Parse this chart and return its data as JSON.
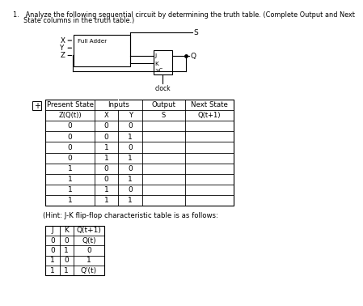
{
  "bg_color": "#ffffff",
  "text_color": "#000000",
  "title_line1": "1.   Analyze the following sequential circuit by determining the truth table. (Complete Output and Next",
  "title_line2": "     State columns in the truth table.)",
  "circuit_label": "Full Adder",
  "clock_label": "clock",
  "output_s_label": "S",
  "output_q_label": "Q",
  "hint_text": "(Hint: J-K flip-flop characteristic table is as follows:",
  "main_table": {
    "col_headers": [
      "Present State",
      "Inputs",
      "Output",
      "Next State"
    ],
    "sub_headers": [
      "Z(Q(t))",
      "X",
      "Y",
      "S",
      "Q(t+1)"
    ],
    "rows": [
      [
        "0",
        "0",
        "0",
        "",
        ""
      ],
      [
        "0",
        "0",
        "1",
        "",
        ""
      ],
      [
        "0",
        "1",
        "0",
        "",
        ""
      ],
      [
        "0",
        "1",
        "1",
        "",
        ""
      ],
      [
        "1",
        "0",
        "0",
        "",
        ""
      ],
      [
        "1",
        "0",
        "1",
        "",
        ""
      ],
      [
        "1",
        "1",
        "0",
        "",
        ""
      ],
      [
        "1",
        "1",
        "1",
        "",
        ""
      ]
    ]
  },
  "jk_table": {
    "col_headers": [
      "J",
      "K",
      "Q(t+1)"
    ],
    "rows": [
      [
        "0",
        "0",
        "Q(t)"
      ],
      [
        "0",
        "1",
        "0"
      ],
      [
        "1",
        "0",
        "1"
      ],
      [
        "1",
        "1",
        "Q'(t)"
      ]
    ]
  }
}
